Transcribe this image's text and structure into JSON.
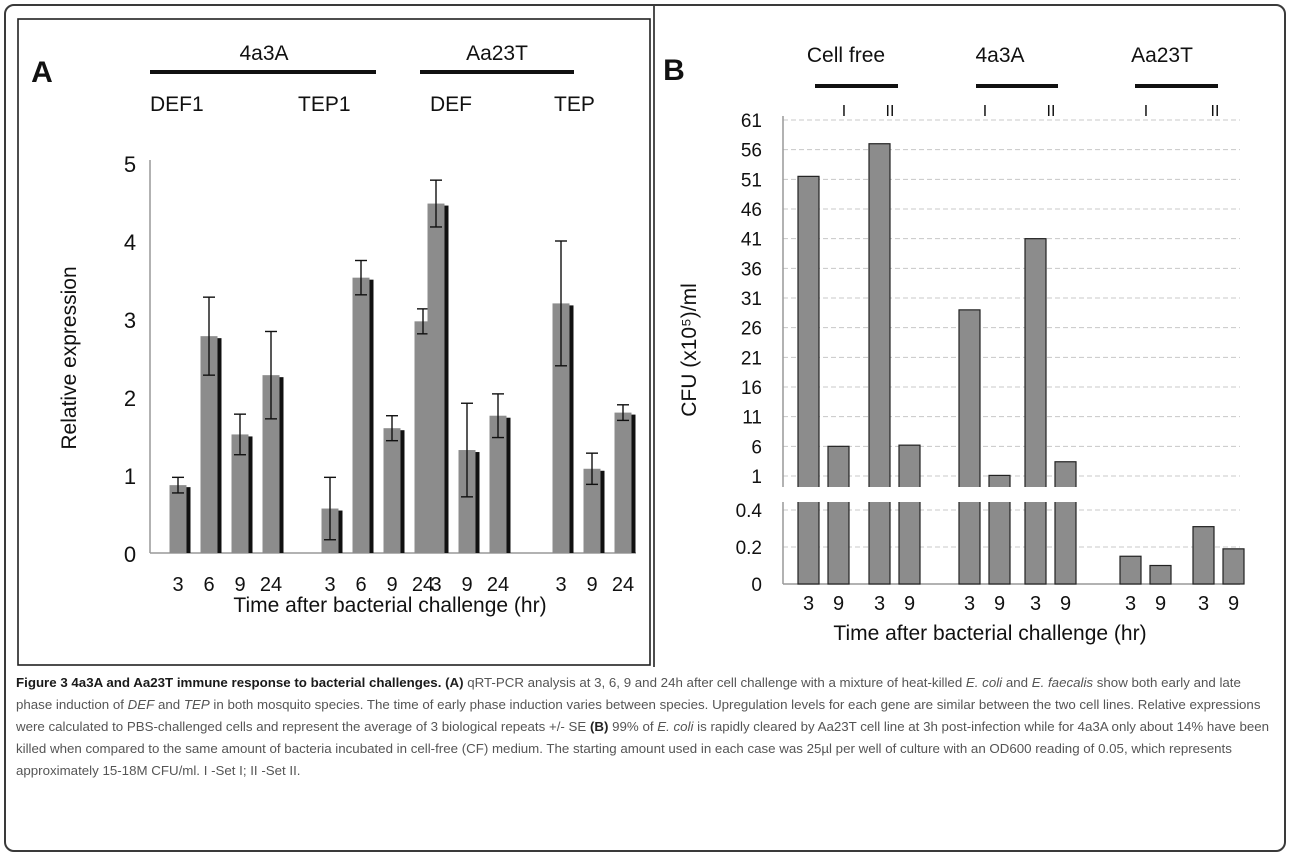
{
  "chart_data": [
    {
      "panel": "A",
      "type": "bar",
      "ylabel": "Relative expression",
      "xlabel": "Time after bacterial challenge (hr)",
      "ylim": [
        0,
        5
      ],
      "yticks": [
        0,
        1,
        2,
        3,
        4,
        5
      ],
      "groups": [
        {
          "name": "4a3A",
          "genes": [
            {
              "name": "DEF1",
              "categories": [
                "3",
                "6",
                "9",
                "24"
              ],
              "values": [
                0.87,
                2.78,
                1.52,
                2.28
              ],
              "errors": [
                0.1,
                0.5,
                0.26,
                0.56
              ]
            },
            {
              "name": "TEP1",
              "categories": [
                "3",
                "6",
                "9",
                "24"
              ],
              "values": [
                0.57,
                3.53,
                1.6,
                2.97
              ],
              "errors": [
                0.4,
                0.22,
                0.16,
                0.16
              ]
            }
          ]
        },
        {
          "name": "Aa23T",
          "genes": [
            {
              "name": "DEF",
              "categories": [
                "3",
                "9",
                "24"
              ],
              "values": [
                4.48,
                1.32,
                1.76
              ],
              "errors": [
                0.3,
                0.6,
                0.28
              ]
            },
            {
              "name": "TEP",
              "categories": [
                "3",
                "9",
                "24"
              ],
              "values": [
                3.2,
                1.08,
                1.8
              ],
              "errors": [
                0.8,
                0.2,
                0.1
              ]
            }
          ]
        }
      ],
      "xtick_labels": [
        "3",
        "6",
        "9",
        "24",
        "3",
        "6",
        "9",
        "24",
        "3",
        "9",
        "24",
        "3",
        "9",
        "24"
      ]
    },
    {
      "panel": "B",
      "type": "bar",
      "ylabel": "CFU (x10⁵)/ml",
      "xlabel": "Time after bacterial challenge (hr)",
      "axis_break": true,
      "yticks_upper": [
        1,
        6,
        11,
        16,
        21,
        26,
        31,
        36,
        41,
        46,
        51,
        56,
        61
      ],
      "yticks_lower": [
        0,
        0.2,
        0.4
      ],
      "grid": true,
      "groups": [
        {
          "name": "Cell free",
          "sets": [
            {
              "name": "I",
              "categories": [
                "3",
                "9"
              ],
              "values": [
                51.5,
                6
              ]
            },
            {
              "name": "II",
              "categories": [
                "3",
                "9"
              ],
              "values": [
                57,
                6.2
              ]
            }
          ]
        },
        {
          "name": "4a3A",
          "sets": [
            {
              "name": "I",
              "categories": [
                "3",
                "9"
              ],
              "values": [
                29,
                1.1
              ]
            },
            {
              "name": "II",
              "categories": [
                "3",
                "9"
              ],
              "values": [
                41,
                3.4
              ]
            }
          ]
        },
        {
          "name": "Aa23T",
          "sets": [
            {
              "name": "I",
              "categories": [
                "3",
                "9"
              ],
              "values": [
                0.15,
                0.1
              ]
            },
            {
              "name": "II",
              "categories": [
                "3",
                "9"
              ],
              "values": [
                0.31,
                0.19
              ]
            }
          ]
        }
      ],
      "xtick_labels": [
        "3",
        "9",
        "3",
        "9",
        "3",
        "9",
        "3",
        "9",
        "3",
        "9",
        "3",
        "9"
      ]
    }
  ],
  "caption": {
    "label": "Figure 3 4a3A and Aa23T immune response to bacterial challenges.",
    "a_tag": "(A)",
    "a_text1": " qRT-PCR analysis at 3, 6, 9 and 24h after cell challenge with a mixture of heat-killed ",
    "ecoli": "E. coli",
    "and": " and ",
    "efaecalis": "E. faecalis",
    "a_text2": " show both early and late phase induction of ",
    "def": "DEF",
    "tep": "TEP",
    "a_text3": " in both mosquito species. The time of early phase induction varies between species. Upregulation levels for each gene are similar between the two cell lines. Relative expressions were calculated to PBS-challenged cells and represent the average of 3 biological repeats +/- SE ",
    "b_tag": "(B)",
    "b_text1": " 99% of ",
    "b_text2": " is rapidly cleared by Aa23T cell line at 3h post-infection while for 4a3A only about 14% have been killed when compared to the same amount of bacteria incubated in cell-free (CF) medium. The starting amount used in each case was 25µl per well of culture with an OD600 reading of 0.05, which represents approximately 15-18M CFU/ml. I -Set I; II -Set II."
  }
}
